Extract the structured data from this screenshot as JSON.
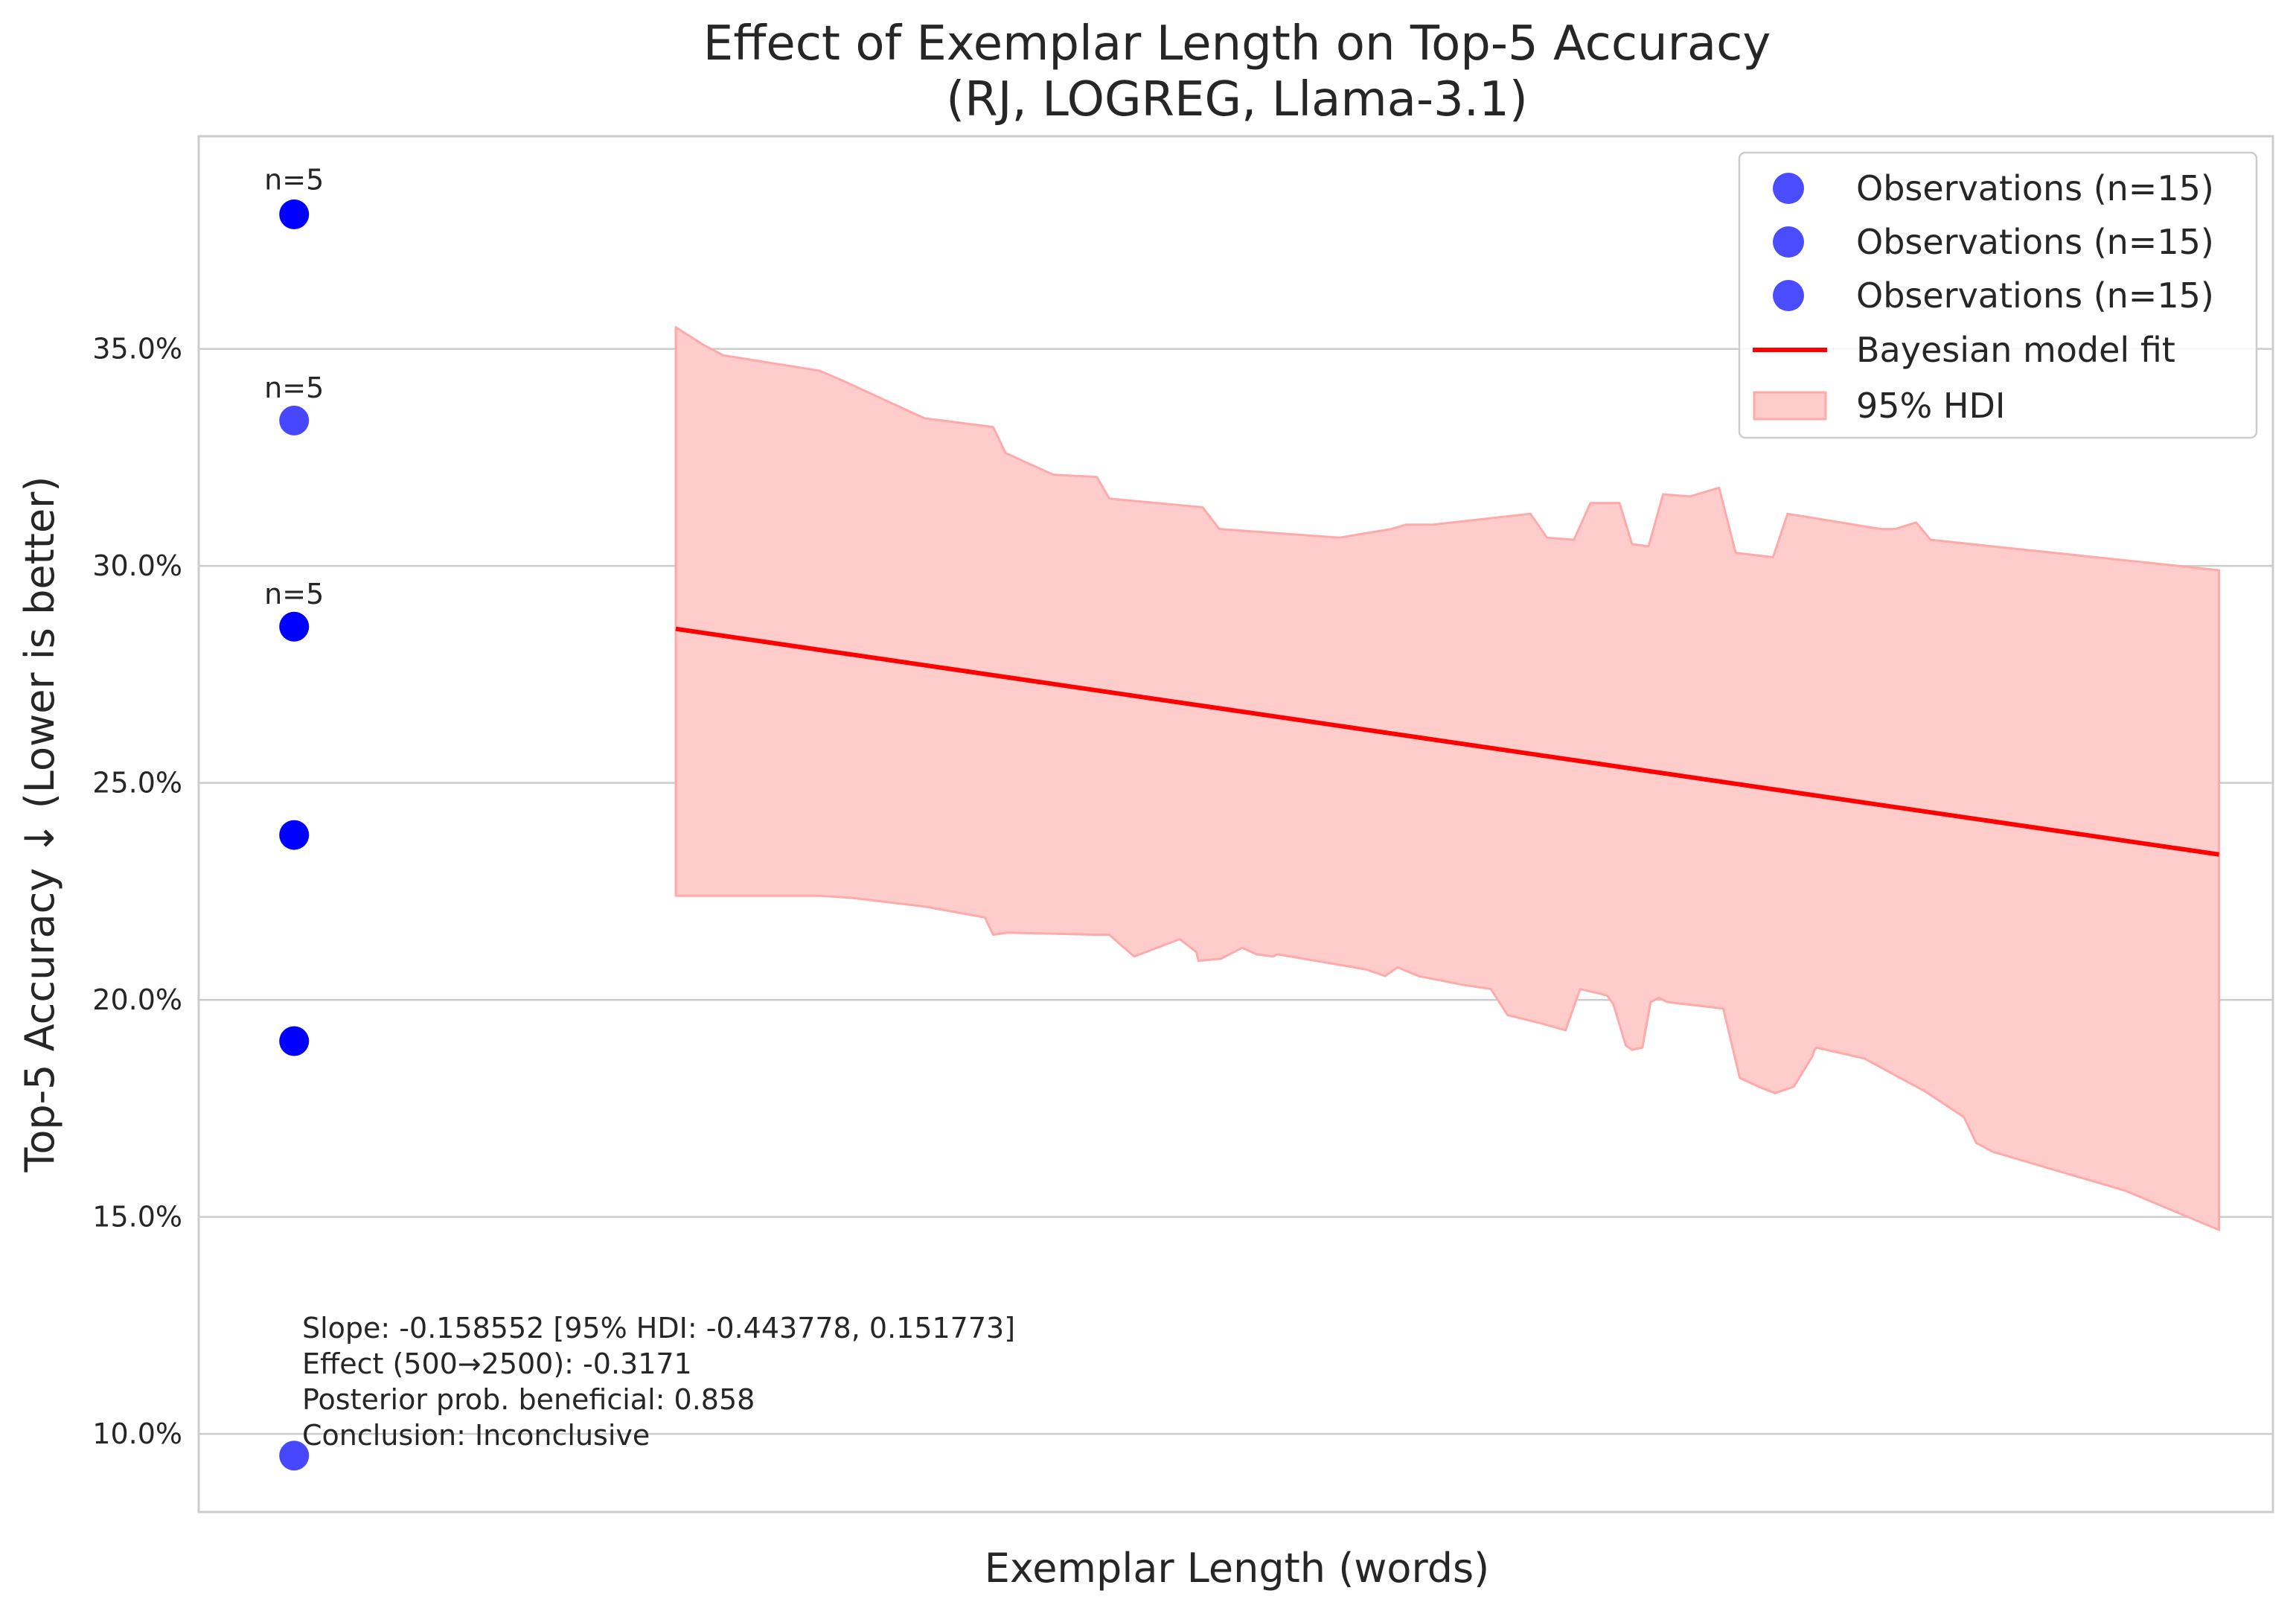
{
  "chart_data": {
    "type": "scatter",
    "title": "Effect of Exemplar Length on Top-5 Accuracy",
    "subtitle": "(RJ, LOGREG, Llama-3.1)",
    "xlabel": "Exemplar Length (words)",
    "ylabel": "Top-5 Accuracy ↓ (Lower is better)",
    "xlim": [
      0,
      100
    ],
    "ylim": [
      8.2,
      39.9
    ],
    "yticks": [
      10,
      15,
      20,
      25,
      30,
      35
    ],
    "ytick_labels": [
      "10.0%",
      "15.0%",
      "20.0%",
      "25.0%",
      "30.0%",
      "35.0%"
    ],
    "grid": true,
    "legend_position": "top-right",
    "colors": {
      "observations": "#0000ff",
      "fit": "#ff0000",
      "hdi": "#ffcccc",
      "hdi_edge": "#ffaaaa",
      "grid": "#cccccc"
    },
    "observations": [
      {
        "x": 4.6,
        "y": 38.1
      },
      {
        "x": 4.6,
        "y": 33.35
      },
      {
        "x": 4.6,
        "y": 28.6
      },
      {
        "x": 4.6,
        "y": 23.8
      },
      {
        "x": 4.6,
        "y": 19.05
      },
      {
        "x": 4.6,
        "y": 9.5
      }
    ],
    "n_labels": [
      {
        "text": "n=5",
        "x": 4.6,
        "y": 38.9
      },
      {
        "text": "n=5",
        "x": 4.6,
        "y": 34.1
      },
      {
        "text": "n=5",
        "x": 4.6,
        "y": 29.35
      }
    ],
    "fit_line": {
      "x": [
        23,
        97.4
      ],
      "y": [
        28.55,
        23.35
      ]
    },
    "hdi": {
      "upper": [
        [
          23,
          35.5
        ],
        [
          24.3,
          35.1
        ],
        [
          25.3,
          34.85
        ],
        [
          29.9,
          34.5
        ],
        [
          30.9,
          34.3
        ],
        [
          35,
          33.4
        ],
        [
          38.3,
          33.2
        ],
        [
          38.9,
          32.6
        ],
        [
          41.2,
          32.1
        ],
        [
          43.3,
          32.05
        ],
        [
          43.9,
          31.55
        ],
        [
          48.4,
          31.35
        ],
        [
          49.2,
          30.85
        ],
        [
          55,
          30.65
        ],
        [
          57.5,
          30.85
        ],
        [
          58.2,
          30.95
        ],
        [
          59.5,
          30.95
        ],
        [
          64.2,
          31.2
        ],
        [
          65,
          30.65
        ],
        [
          66.3,
          30.6
        ],
        [
          67.1,
          31.45
        ],
        [
          68.5,
          31.45
        ],
        [
          69.1,
          30.5
        ],
        [
          69.9,
          30.45
        ],
        [
          70.6,
          31.65
        ],
        [
          71.9,
          31.6
        ],
        [
          73.3,
          31.8
        ],
        [
          74.1,
          30.3
        ],
        [
          75.9,
          30.2
        ],
        [
          76.6,
          31.2
        ],
        [
          81.1,
          30.85
        ],
        [
          81.8,
          30.85
        ],
        [
          82.8,
          31.0
        ],
        [
          83.5,
          30.6
        ],
        [
          97.4,
          29.9
        ]
      ],
      "lower": [
        [
          97.4,
          14.7
        ],
        [
          92.9,
          15.6
        ],
        [
          86.5,
          16.5
        ],
        [
          85.7,
          16.7
        ],
        [
          85.1,
          17.3
        ],
        [
          84,
          17.65
        ],
        [
          83.2,
          17.9
        ],
        [
          80.3,
          18.65
        ],
        [
          78,
          18.9
        ],
        [
          77.9,
          18.85
        ],
        [
          77.8,
          18.7
        ],
        [
          76.9,
          18.0
        ],
        [
          76,
          17.85
        ],
        [
          75.2,
          18.0
        ],
        [
          74.3,
          18.2
        ],
        [
          73.5,
          19.8
        ],
        [
          70.8,
          19.95
        ],
        [
          70.4,
          20.05
        ],
        [
          70,
          19.95
        ],
        [
          69.6,
          18.9
        ],
        [
          69.1,
          18.85
        ],
        [
          68.8,
          18.95
        ],
        [
          68.2,
          19.9
        ],
        [
          67.9,
          20.1
        ],
        [
          67.5,
          20.15
        ],
        [
          66.6,
          20.25
        ],
        [
          65.9,
          19.3
        ],
        [
          64.8,
          19.45
        ],
        [
          63.1,
          19.65
        ],
        [
          62.3,
          20.25
        ],
        [
          60.9,
          20.35
        ],
        [
          58.8,
          20.55
        ],
        [
          57.8,
          20.75
        ],
        [
          57.2,
          20.55
        ],
        [
          56.3,
          20.7
        ],
        [
          55.1,
          20.8
        ],
        [
          52,
          21.05
        ],
        [
          51.8,
          21.0
        ],
        [
          51,
          21.05
        ],
        [
          50.3,
          21.2
        ],
        [
          49.3,
          20.95
        ],
        [
          48.2,
          20.9
        ],
        [
          48.1,
          21.1
        ],
        [
          47.3,
          21.4
        ],
        [
          45.1,
          21.0
        ],
        [
          43.9,
          21.5
        ],
        [
          43.3,
          21.5
        ],
        [
          39,
          21.55
        ],
        [
          38.3,
          21.5
        ],
        [
          37.9,
          21.9
        ],
        [
          35,
          22.15
        ],
        [
          31.5,
          22.35
        ],
        [
          29.9,
          22.4
        ],
        [
          23,
          22.4
        ]
      ]
    },
    "legend": [
      {
        "label": "Observations (n=15)",
        "kind": "marker"
      },
      {
        "label": "Observations (n=15)",
        "kind": "marker"
      },
      {
        "label": "Observations (n=15)",
        "kind": "marker"
      },
      {
        "label": "Bayesian model fit",
        "kind": "line"
      },
      {
        "label": "95% HDI",
        "kind": "patch"
      }
    ],
    "annotation": [
      "Slope: -0.158552 [95% HDI: -0.443778, 0.151773]",
      "Effect (500→2500): -0.3171",
      "Posterior prob. beneficial: 0.858",
      "Conclusion: Inconclusive"
    ]
  }
}
